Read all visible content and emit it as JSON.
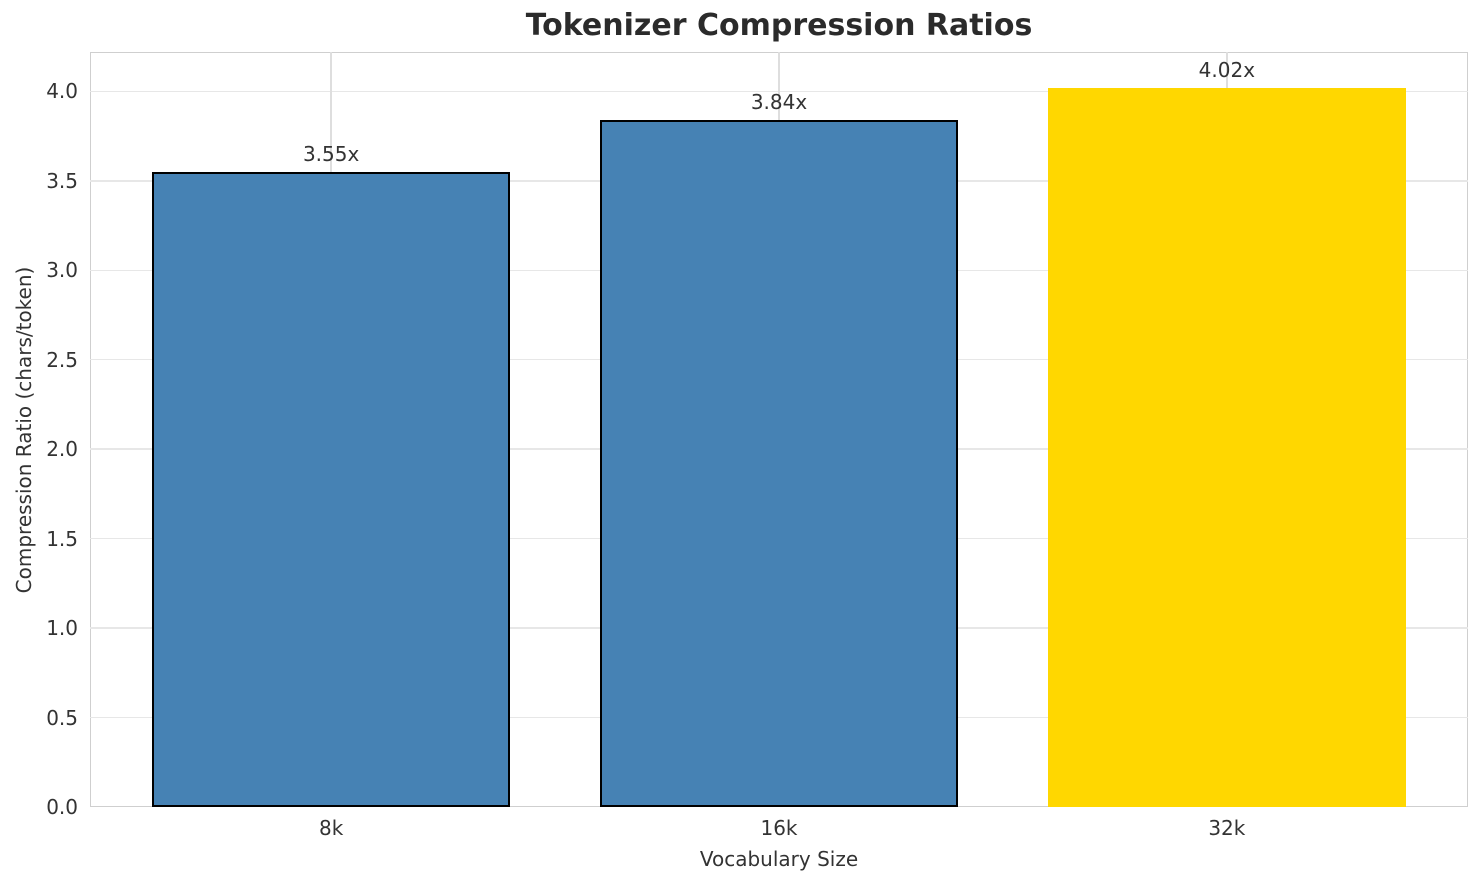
{
  "chart_data": {
    "type": "bar",
    "title": "Tokenizer Compression Ratios",
    "xlabel": "Vocabulary Size",
    "ylabel": "Compression Ratio (chars/token)",
    "categories": [
      "8k",
      "16k",
      "32k"
    ],
    "values": [
      3.55,
      3.84,
      4.02
    ],
    "bar_labels": [
      "3.55x",
      "3.84x",
      "4.02x"
    ],
    "bar_colors": [
      "#4682B4",
      "#4682B4",
      "#FFD700"
    ],
    "bar_edge_colors": [
      "#000000",
      "#000000",
      "none"
    ],
    "ylim": [
      0,
      4.22
    ],
    "yticks": [
      0,
      0.5,
      1,
      1.5,
      2,
      2.5,
      3,
      3.5,
      4
    ],
    "ytick_labels": [
      "0.0",
      "0.5",
      "1.0",
      "1.5",
      "2.0",
      "2.5",
      "3.0",
      "3.5",
      "4.0"
    ],
    "grid": true,
    "legend": "none",
    "colors": {
      "grid_h": "#e7e7e7",
      "grid_v": "#dedede",
      "spine": "#cfcfcf",
      "text": "#333333",
      "title_text": "#2b2b2b",
      "background": "#ffffff"
    }
  }
}
